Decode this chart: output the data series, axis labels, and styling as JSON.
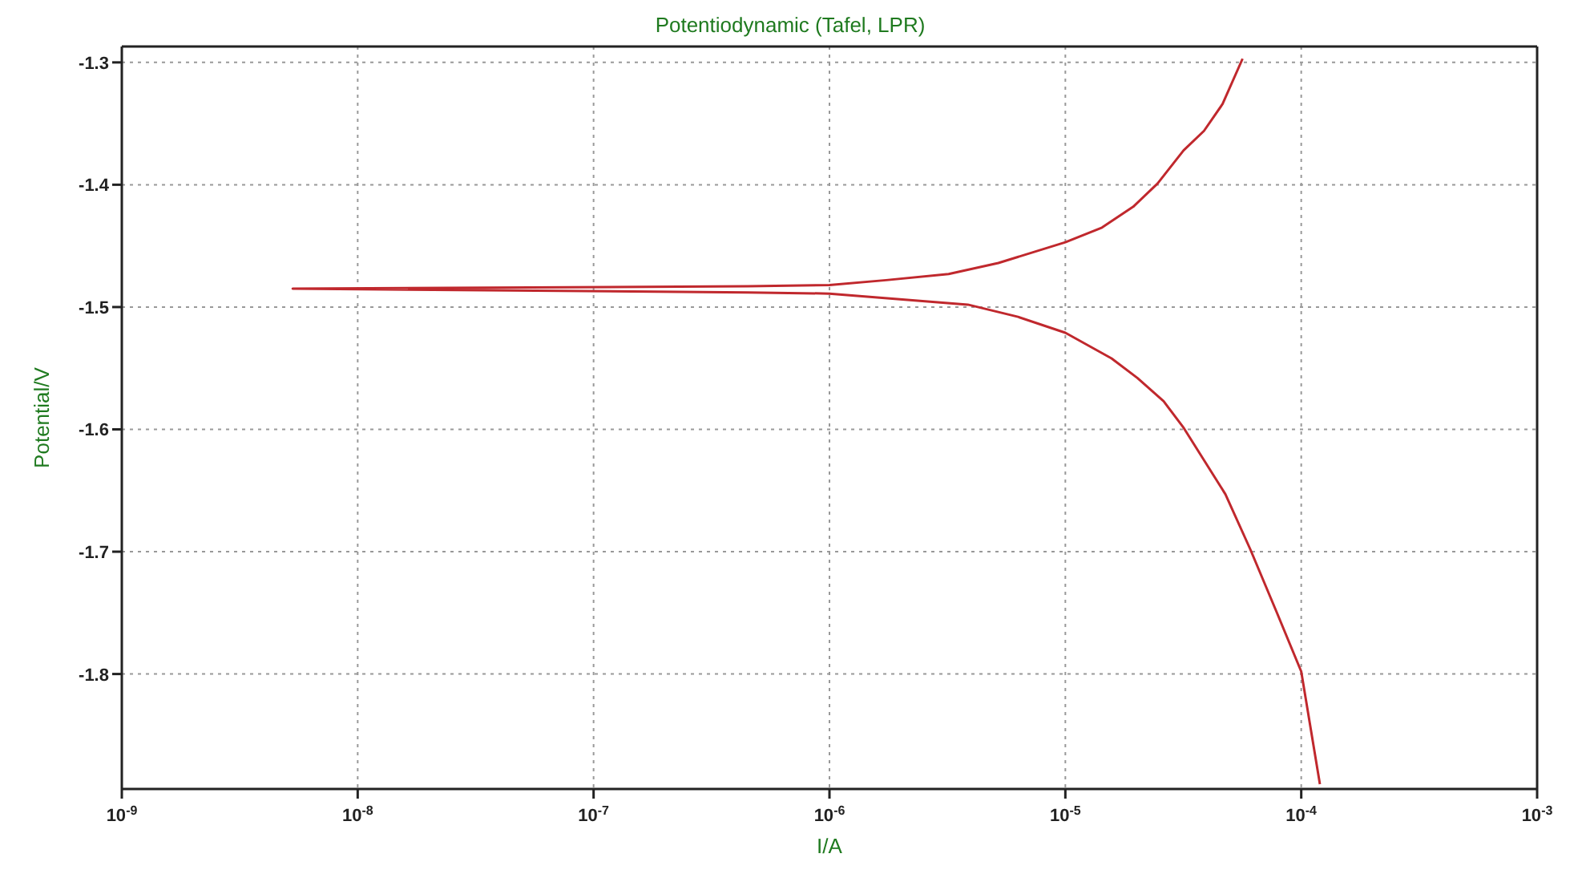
{
  "chart_data": {
    "type": "line",
    "title": "Potentiodynamic (Tafel, LPR)",
    "xlabel": "I/A",
    "ylabel": "Potential/V",
    "series": [
      {
        "color": "#c0282d",
        "x": [
          0.00012,
          0.0001,
          7.85e-05,
          6.08e-05,
          4.77e-05,
          3.18e-05,
          2.61e-05,
          2.02e-05,
          1.57e-05,
          1e-05,
          6.3e-06,
          3.86e-06,
          1e-06,
          4.5e-07,
          5.3e-09,
          4.5e-07,
          1e-06,
          1.74e-06,
          3.2e-06,
          5.2e-06,
          1e-05,
          1.43e-05,
          1.94e-05,
          2.46e-05,
          3.17e-05,
          3.87e-05,
          4.64e-05,
          5.64e-05
        ],
        "values": [
          -1.89,
          -1.798,
          -1.749,
          -1.698,
          -1.653,
          -1.599,
          -1.577,
          -1.558,
          -1.542,
          -1.521,
          -1.508,
          -1.498,
          -1.489,
          -1.488,
          -1.485,
          -1.483,
          -1.482,
          -1.478,
          -1.473,
          -1.464,
          -1.447,
          -1.435,
          -1.418,
          -1.399,
          -1.372,
          -1.356,
          -1.334,
          -1.297
        ]
      }
    ],
    "log": "x",
    "xlim": [
      1e-09,
      0.001
    ],
    "xticks": [
      {
        "value": 1e-09,
        "label": "10$^{-9}$"
      },
      {
        "value": 1e-08,
        "label": "10$^{-8}$"
      },
      {
        "value": 1e-07,
        "label": "10$^{-7}$"
      },
      {
        "value": 1e-06,
        "label": "10$^{-6}$"
      },
      {
        "value": 1e-05,
        "label": "10$^{-5}$"
      },
      {
        "value": 0.0001,
        "label": "10$^{-4}$"
      },
      {
        "value": 0.001,
        "label": "10$^{-3}$"
      }
    ],
    "ylim": [
      -1.894,
      -1.287
    ],
    "yticks": [
      -1.3,
      -1.4,
      -1.5,
      -1.6,
      -1.7,
      -1.8
    ],
    "grid": true,
    "marker": "none",
    "line_style": "solid",
    "legend": false
  }
}
